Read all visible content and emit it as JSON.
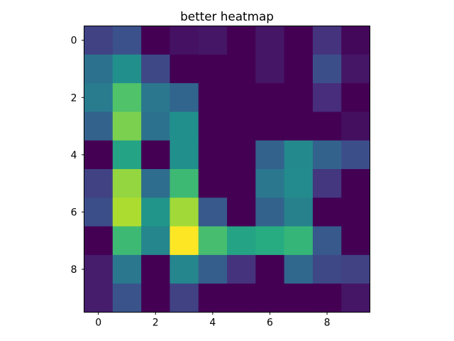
{
  "chart_data": {
    "type": "heatmap",
    "title": "better heatmap",
    "xlabel": "",
    "ylabel": "",
    "colormap": "viridis",
    "vmin": 0,
    "vmax": 1,
    "x_ticks": [
      0,
      2,
      4,
      6,
      8
    ],
    "y_ticks": [
      0,
      2,
      4,
      6,
      8
    ],
    "x_tick_labels": [
      "0",
      "2",
      "4",
      "6",
      "8"
    ],
    "y_tick_labels": [
      "0",
      "2",
      "4",
      "6",
      "8"
    ],
    "rows": [
      0,
      1,
      2,
      3,
      4,
      5,
      6,
      7,
      8,
      9
    ],
    "cols": [
      0,
      1,
      2,
      3,
      4,
      5,
      6,
      7,
      8,
      9
    ],
    "values": [
      [
        0.2,
        0.25,
        0.0,
        0.05,
        0.06,
        0.0,
        0.06,
        0.0,
        0.15,
        0.02
      ],
      [
        0.38,
        0.5,
        0.22,
        0.0,
        0.0,
        0.0,
        0.06,
        0.0,
        0.24,
        0.06
      ],
      [
        0.42,
        0.72,
        0.4,
        0.33,
        0.0,
        0.0,
        0.0,
        0.0,
        0.13,
        0.0
      ],
      [
        0.32,
        0.8,
        0.38,
        0.5,
        0.0,
        0.0,
        0.0,
        0.0,
        0.0,
        0.04
      ],
      [
        0.0,
        0.58,
        0.0,
        0.5,
        0.0,
        0.0,
        0.32,
        0.47,
        0.32,
        0.24
      ],
      [
        0.2,
        0.84,
        0.36,
        0.68,
        0.0,
        0.0,
        0.4,
        0.48,
        0.16,
        0.0
      ],
      [
        0.24,
        0.88,
        0.52,
        0.86,
        0.28,
        0.0,
        0.32,
        0.44,
        0.0,
        0.0
      ],
      [
        0.0,
        0.68,
        0.46,
        1.0,
        0.7,
        0.58,
        0.62,
        0.66,
        0.28,
        0.0
      ],
      [
        0.08,
        0.4,
        0.0,
        0.46,
        0.3,
        0.15,
        0.0,
        0.34,
        0.22,
        0.2
      ],
      [
        0.08,
        0.26,
        0.0,
        0.2,
        0.0,
        0.0,
        0.0,
        0.0,
        0.0,
        0.06
      ]
    ]
  }
}
